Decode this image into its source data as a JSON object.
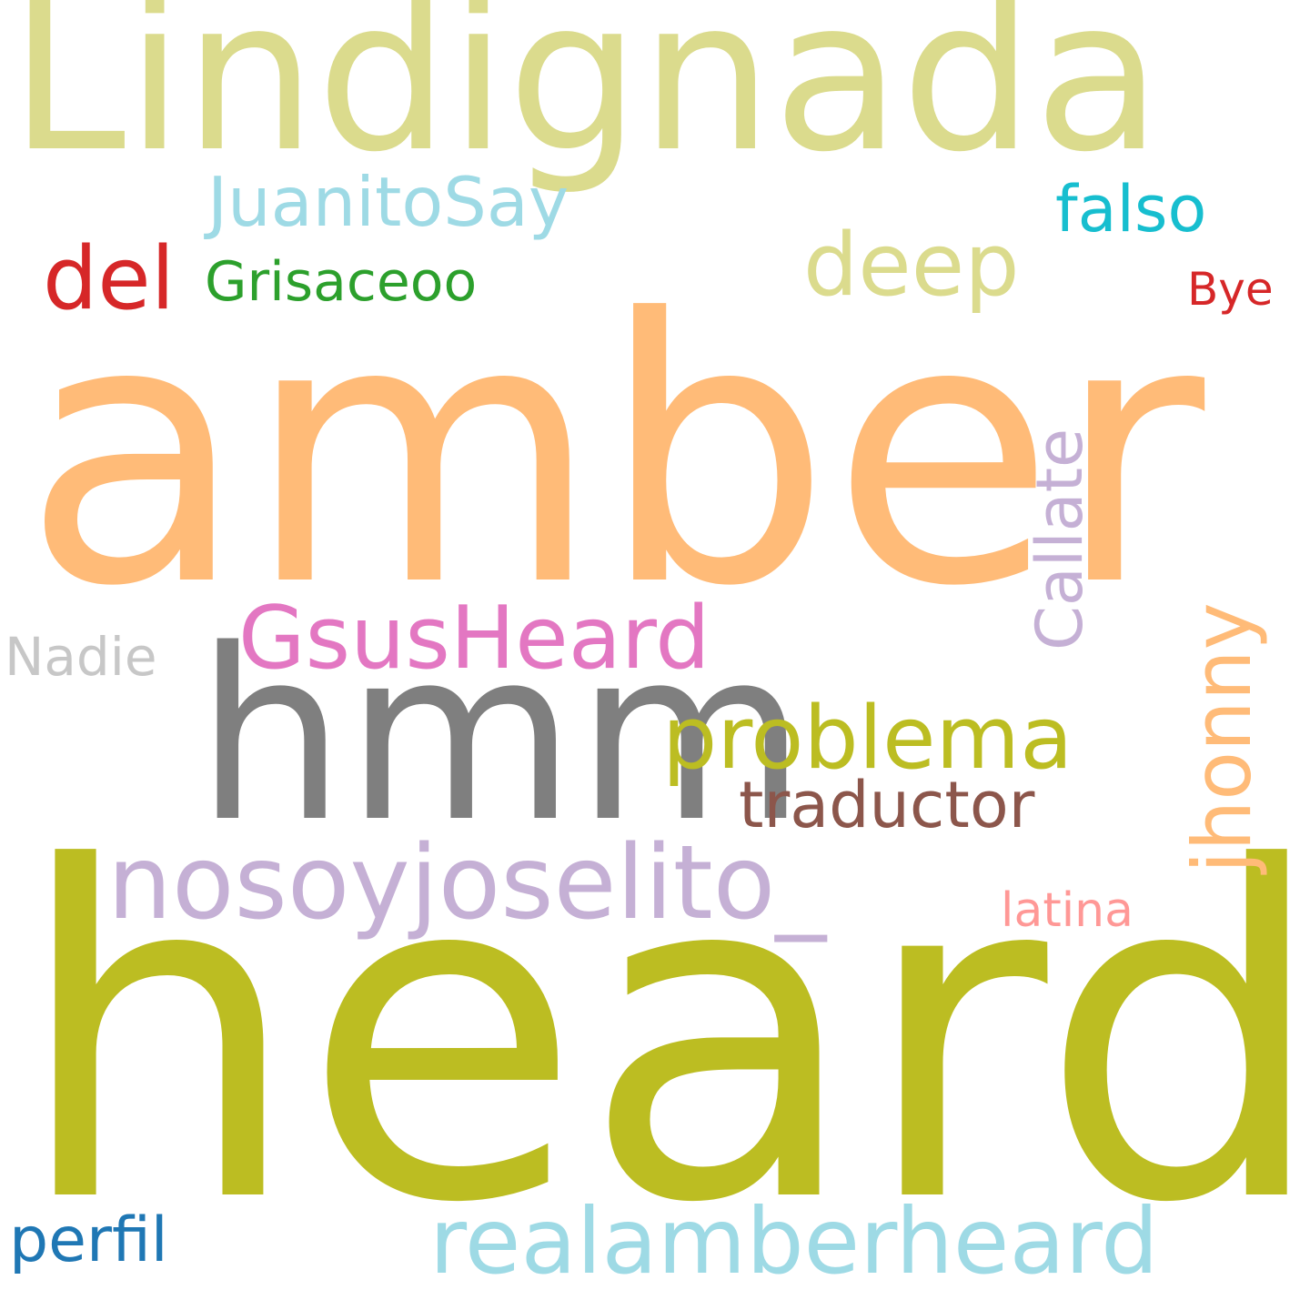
{
  "words": [
    {
      "text": "amber",
      "color": "#ffbb78"
    },
    {
      "text": "heard",
      "color": "#bcbd22"
    },
    {
      "text": "Lindignada",
      "color": "#dbdb8d"
    },
    {
      "text": "hmm",
      "color": "#7f7f7f"
    },
    {
      "text": "nosoyjoselito_",
      "color": "#c5b0d5"
    },
    {
      "text": "realamberheard",
      "color": "#9edae5"
    },
    {
      "text": "GsusHeard",
      "color": "#e377c2"
    },
    {
      "text": "problema",
      "color": "#bcbd22"
    },
    {
      "text": "jhonny",
      "color": "#ffbb78"
    },
    {
      "text": "Callate",
      "color": "#c5b0d5"
    },
    {
      "text": "deep",
      "color": "#dbdb8d"
    },
    {
      "text": "JuanitoSay",
      "color": "#9edae5"
    },
    {
      "text": "del",
      "color": "#d62728"
    },
    {
      "text": "traductor",
      "color": "#8c564b"
    },
    {
      "text": "falso",
      "color": "#17becf"
    },
    {
      "text": "perfil",
      "color": "#1f77b4"
    },
    {
      "text": "Grisaceoo",
      "color": "#2ca02c"
    },
    {
      "text": "Nadie",
      "color": "#c7c7c7"
    },
    {
      "text": "latina",
      "color": "#ff9896"
    },
    {
      "text": "Bye",
      "color": "#d62728"
    }
  ]
}
